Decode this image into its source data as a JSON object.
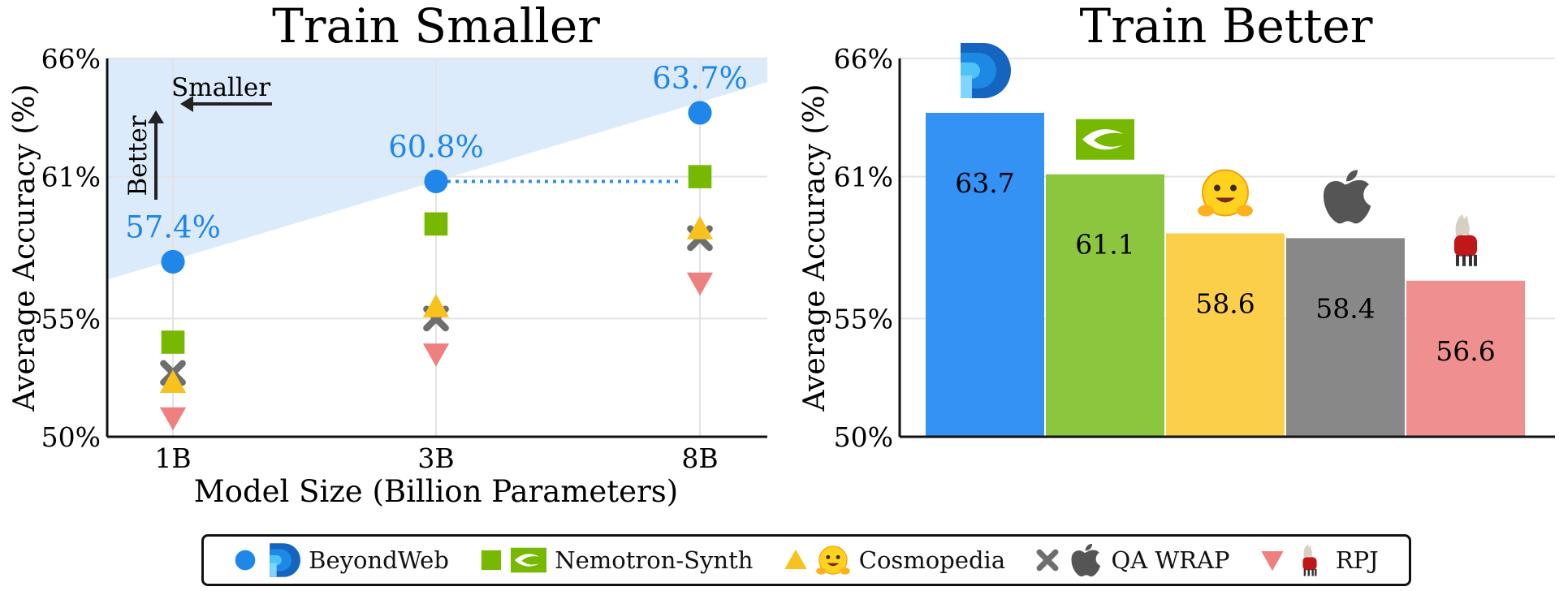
{
  "chart_data": [
    {
      "type": "scatter",
      "title": "Train Smaller",
      "xlabel": "Model Size (Billion Parameters)",
      "ylabel": "Average Accuracy (%)",
      "categories": [
        "1B",
        "3B",
        "8B"
      ],
      "ylim": [
        50,
        66
      ],
      "yticks": [
        "50%",
        "55%",
        "61%",
        "66%"
      ],
      "ytick_values": [
        50,
        55,
        61,
        66
      ],
      "grid": true,
      "series": [
        {
          "name": "BeyondWeb",
          "values": [
            57.4,
            60.8,
            63.7
          ],
          "marker": "circle",
          "color": "#1f86ea",
          "labels": [
            "57.4%",
            "60.8%",
            "63.7%"
          ]
        },
        {
          "name": "Nemotron-Synth",
          "values": [
            54.0,
            59.0,
            61.0
          ],
          "marker": "square",
          "color": "#77b900"
        },
        {
          "name": "Cosmopedia",
          "values": [
            52.3,
            55.5,
            58.8
          ],
          "marker": "triangle-up",
          "color": "#f7c21b"
        },
        {
          "name": "QA WRAP",
          "values": [
            52.7,
            55.0,
            58.4
          ],
          "marker": "x",
          "color": "#6e6e6e"
        },
        {
          "name": "RPJ",
          "values": [
            50.8,
            53.5,
            56.5
          ],
          "marker": "triangle-down",
          "color": "#ef8080"
        }
      ],
      "annotations": [
        "Smaller",
        "Better"
      ]
    },
    {
      "type": "bar",
      "title": "Train Better",
      "ylabel": "Average Accuracy (%)",
      "ylim": [
        50,
        66
      ],
      "yticks": [
        "50%",
        "55%",
        "61%",
        "66%"
      ],
      "ytick_values": [
        50,
        55,
        61,
        66
      ],
      "grid": true,
      "categories": [
        "BeyondWeb",
        "Nemotron-Synth",
        "Cosmopedia",
        "QA WRAP",
        "RPJ"
      ],
      "values": [
        63.7,
        61.1,
        58.6,
        58.4,
        56.6
      ],
      "value_labels": [
        "63.7",
        "61.1",
        "58.6",
        "58.4",
        "56.6"
      ],
      "colors": [
        "#3492f5",
        "#8cc63f",
        "#fccf4a",
        "#888888",
        "#ef8f8f"
      ],
      "icons": [
        "beyondweb-logo-icon",
        "nvidia-logo-icon",
        "hugging-face-icon",
        "apple-logo-icon",
        "llama-icon"
      ]
    }
  ],
  "legend": [
    {
      "label": "BeyondWeb",
      "marker": "circle",
      "color": "#1f86ea",
      "icon": "beyondweb-logo-icon"
    },
    {
      "label": "Nemotron-Synth",
      "marker": "square",
      "color": "#77b900",
      "icon": "nvidia-logo-icon"
    },
    {
      "label": "Cosmopedia",
      "marker": "triangle-up",
      "color": "#f7c21b",
      "icon": "hugging-face-icon"
    },
    {
      "label": "QA WRAP",
      "marker": "x",
      "color": "#6e6e6e",
      "icon": "apple-logo-icon"
    },
    {
      "label": "RPJ",
      "marker": "triangle-down",
      "color": "#ef8080",
      "icon": "llama-icon"
    }
  ]
}
